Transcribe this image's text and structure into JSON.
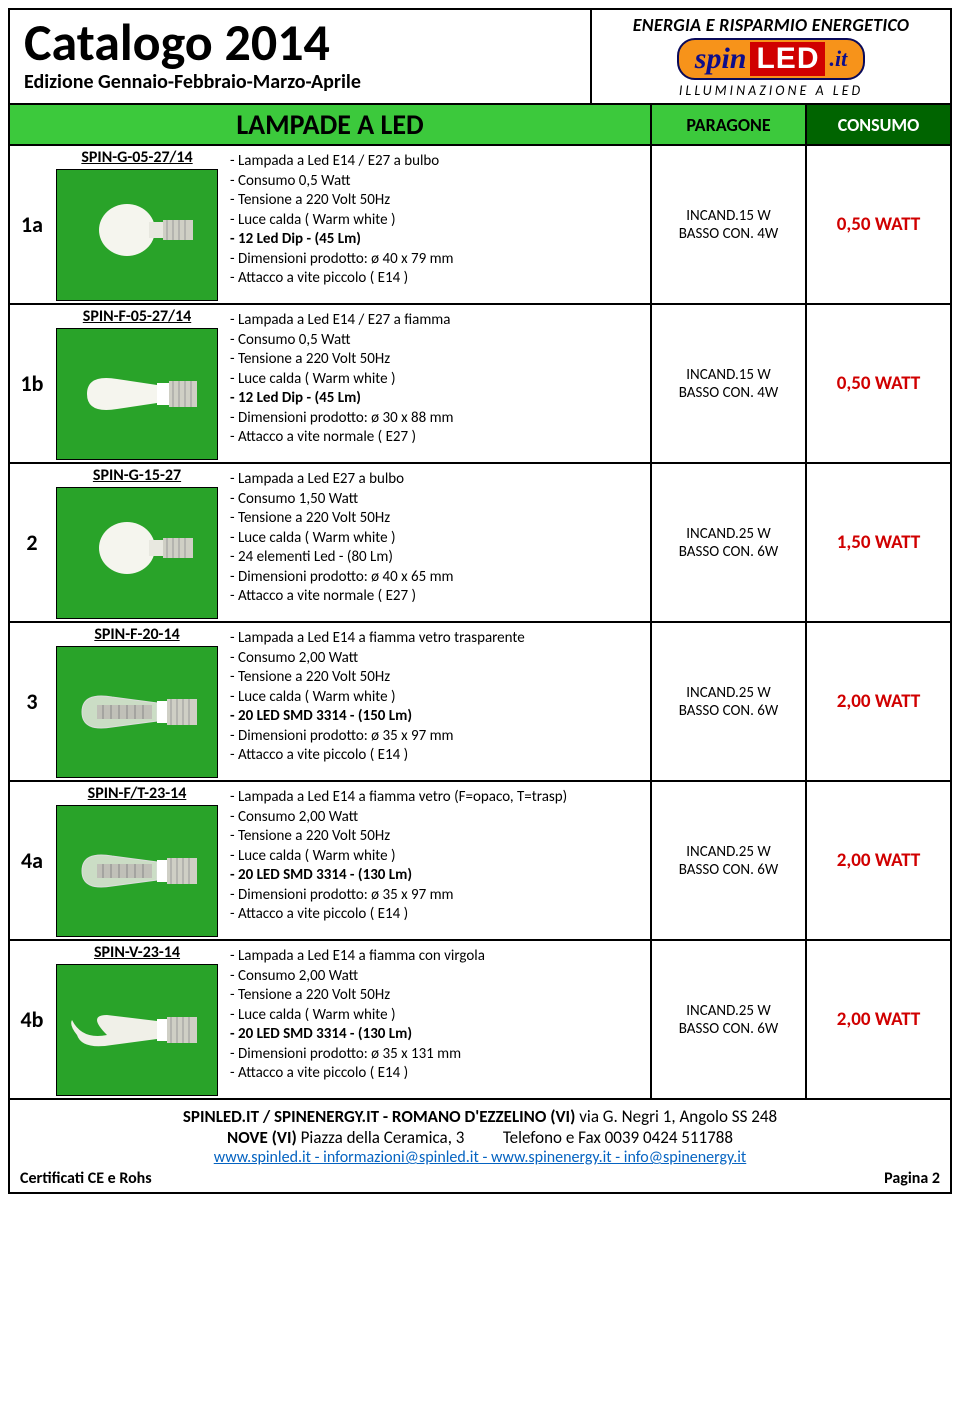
{
  "colors": {
    "green_light": "#3cc93c",
    "green_dark": "#006400",
    "red": "#d00000",
    "link_blue": "#0563c1",
    "orange": "#f7931a",
    "logo_blue": "#0d0d8a",
    "photo_green": "#29a329"
  },
  "header": {
    "title": "Catalogo 2014",
    "subtitle": "Edizione Gennaio-Febbraio-Marzo-Aprile",
    "brand_tagline_top": "ENERGIA E RISPARMIO ENERGETICO",
    "logo_spin": "spin",
    "logo_led": "LED",
    "logo_it": ".it",
    "brand_tagline_bottom": "ILLUMINAZIONE A LED"
  },
  "section": {
    "main": "LAMPADE A LED",
    "paragone": "PARAGONE",
    "consumo": "CONSUMO"
  },
  "products": [
    {
      "id": "1a",
      "sku": "SPIN-G-05-27/14",
      "desc": [
        {
          "t": "- Lampada  a Led E14 / E27 a bulbo"
        },
        {
          "t": "- Consumo 0,5 Watt"
        },
        {
          "t": "- Tensione a 220 Volt 50Hz"
        },
        {
          "t": "- Luce calda ( Warm white )"
        },
        {
          "t": "- 12 Led Dip - (45 Lm)",
          "b": true
        },
        {
          "t": "- Dimensioni prodotto: ø 40 x 79 mm"
        },
        {
          "t": "- Attacco a vite piccolo ( E14 )"
        }
      ],
      "paragone": [
        "INCAND.15 W",
        "BASSO CON. 4W"
      ],
      "consumo": "0,50 WATT",
      "bulb": "globe"
    },
    {
      "id": "1b",
      "sku": "SPIN-F-05-27/14",
      "desc": [
        {
          "t": "- Lampada  a Led E14 / E27 a fiamma"
        },
        {
          "t": "- Consumo 0,5 Watt"
        },
        {
          "t": "- Tensione a 220 Volt 50Hz"
        },
        {
          "t": "- Luce calda ( Warm white )"
        },
        {
          "t": "- 12 Led Dip - (45 Lm)",
          "b": true
        },
        {
          "t": "- Dimensioni prodotto: ø 30 x 88 mm"
        },
        {
          "t": "- Attacco a vite normale ( E27 )"
        }
      ],
      "paragone": [
        "INCAND.15 W",
        "BASSO CON. 4W"
      ],
      "consumo": "0,50 WATT",
      "bulb": "candle"
    },
    {
      "id": "2",
      "sku": "SPIN-G-15-27",
      "desc": [
        {
          "t": "- Lampada  a Led E27 a bulbo"
        },
        {
          "t": "- Consumo 1,50 Watt"
        },
        {
          "t": "- Tensione a 220 Volt 50Hz"
        },
        {
          "t": "- Luce calda ( Warm white )"
        },
        {
          "t": "- 24 elementi Led - (80 Lm)"
        },
        {
          "t": "- Dimensioni prodotto: ø 40 x 65 mm"
        },
        {
          "t": "- Attacco a vite normale ( E27 )"
        }
      ],
      "paragone": [
        "INCAND.25 W",
        "BASSO CON. 6W"
      ],
      "consumo": "1,50 WATT",
      "bulb": "globe"
    },
    {
      "id": "3",
      "sku": "SPIN-F-20-14",
      "desc": [
        {
          "t": "- Lampada  a Led E14 a fiamma vetro trasparente"
        },
        {
          "t": "- Consumo 2,00 Watt"
        },
        {
          "t": "- Tensione a 220 Volt 50Hz"
        },
        {
          "t": "- Luce calda ( Warm white )"
        },
        {
          "t": "- 20 LED SMD 3314 - (150 Lm)",
          "b": true
        },
        {
          "t": "- Dimensioni prodotto: ø 35 x 97 mm"
        },
        {
          "t": "- Attacco a vite piccolo ( E14 )"
        }
      ],
      "paragone": [
        "INCAND.25 W",
        "BASSO CON. 6W"
      ],
      "consumo": "2,00 WATT",
      "bulb": "candle-clear"
    },
    {
      "id": "4a",
      "sku": "SPIN-F/T-23-14",
      "desc": [
        {
          "t": "- Lampada  a Led E14 a fiamma vetro  (F=opaco, T=trasp)"
        },
        {
          "t": "- Consumo 2,00 Watt"
        },
        {
          "t": "- Tensione a 220 Volt 50Hz"
        },
        {
          "t": "- Luce calda ( Warm white )"
        },
        {
          "t": "- 20 LED SMD 3314 - (130 Lm)",
          "b": true
        },
        {
          "t": "- Dimensioni prodotto: ø 35 x 97 mm"
        },
        {
          "t": "- Attacco a vite piccolo ( E14 )"
        }
      ],
      "paragone": [
        "INCAND.25 W",
        "BASSO CON. 6W"
      ],
      "consumo": "2,00 WATT",
      "bulb": "candle-clear"
    },
    {
      "id": "4b",
      "sku": "SPIN-V-23-14",
      "desc": [
        {
          "t": "- Lampada  a Led E14 a fiamma con virgola"
        },
        {
          "t": "- Consumo 2,00 Watt"
        },
        {
          "t": "- Tensione a 220 Volt 50Hz"
        },
        {
          "t": "- Luce calda ( Warm white )"
        },
        {
          "t": "- 20 LED SMD 3314 - (130 Lm)",
          "b": true
        },
        {
          "t": "- Dimensioni prodotto: ø 35 x 131 mm"
        },
        {
          "t": "- Attacco a vite piccolo ( E14 )"
        }
      ],
      "paragone": [
        "INCAND.25 W",
        "BASSO CON. 6W"
      ],
      "consumo": "2,00 WATT",
      "bulb": "candle-tip"
    }
  ],
  "footer": {
    "line1_bold": "SPINLED.IT / SPINENERGY.IT - ROMANO D'EZZELINO (VI) ",
    "line1_rest": "via G. Negri 1, Angolo SS 248",
    "line2_bold": "NOVE (VI)  ",
    "line2_mid": "Piazza della Ceramica, 3",
    "line2_right": "Telefono e Fax 0039 0424 511788",
    "line3": "www.spinled.it - informazioni@spinled.it - www.spinenergy.it - info@spinenergy.it",
    "cert": "Certificati CE e Rohs",
    "page": "Pagina 2"
  }
}
